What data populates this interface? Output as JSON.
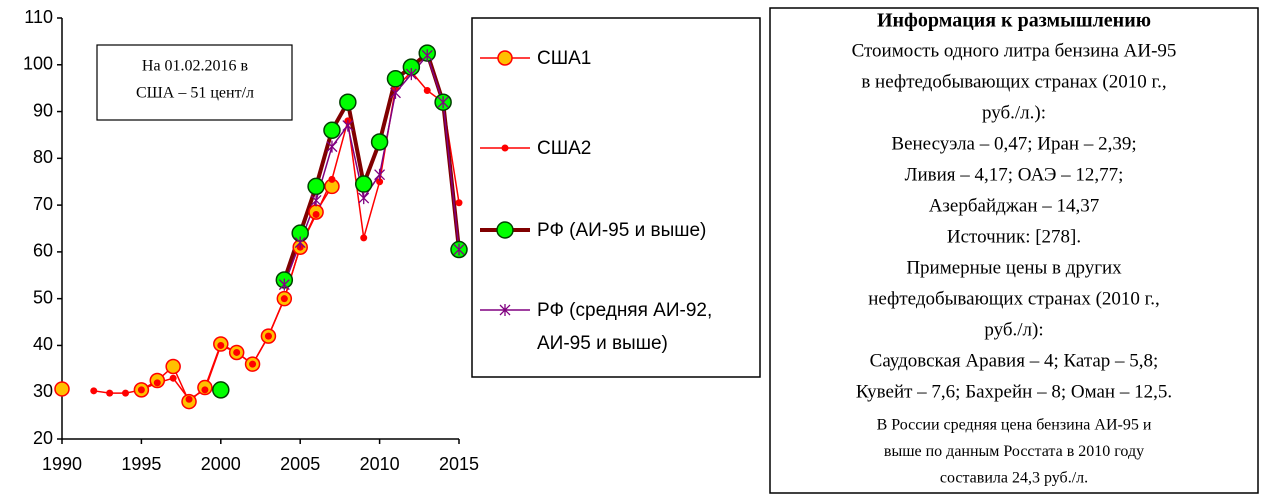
{
  "chart_data": {
    "type": "line",
    "x": [
      1990,
      1991,
      1992,
      1993,
      1994,
      1995,
      1996,
      1997,
      1998,
      1999,
      2000,
      2001,
      2002,
      2003,
      2004,
      2005,
      2006,
      2007,
      2008,
      2009,
      2010,
      2011,
      2012,
      2013,
      2014,
      2015
    ],
    "xlim": [
      1990,
      2015
    ],
    "xticks": [
      1990,
      1995,
      2000,
      2005,
      2010,
      2015
    ],
    "ylim": [
      20,
      110
    ],
    "yticks": [
      20,
      30,
      40,
      50,
      60,
      70,
      80,
      90,
      100,
      110
    ],
    "grid": false,
    "legend": "right",
    "series": [
      {
        "name": "США1",
        "color": "#ff0000",
        "marker": "circle",
        "marker_color": "#ffc000",
        "values": [
          30.7,
          null,
          null,
          null,
          null,
          30.5,
          32.5,
          35.5,
          28,
          31,
          40.3,
          38.5,
          36,
          42,
          50,
          61,
          68.5,
          74,
          null,
          null,
          null,
          null,
          null,
          null,
          null,
          null
        ]
      },
      {
        "name": "США2",
        "color": "#ff0000",
        "marker": "dot",
        "marker_color": "#ff0000",
        "values": [
          null,
          null,
          30.3,
          29.8,
          29.8,
          30.5,
          32,
          33,
          28.5,
          30.5,
          40,
          38.5,
          36,
          42,
          50,
          61,
          68,
          75.5,
          88,
          63,
          75,
          95,
          98.5,
          94.5,
          92,
          70.5
        ]
      },
      {
        "name": "РФ (АИ-95 и выше)",
        "color": "#800000",
        "marker": "circle",
        "marker_color": "#00ff00",
        "values": [
          null,
          null,
          null,
          null,
          null,
          null,
          null,
          null,
          null,
          null,
          30.5,
          null,
          null,
          null,
          54,
          64,
          74,
          86,
          92,
          74.5,
          83.5,
          97,
          99.5,
          102.5,
          92,
          60.5
        ]
      },
      {
        "name": "РФ (средняя АИ-92, АИ-95 и выше)",
        "color": "#800080",
        "marker": "star",
        "marker_color": "#800080",
        "values": [
          null,
          null,
          null,
          null,
          null,
          null,
          null,
          null,
          null,
          null,
          null,
          null,
          null,
          null,
          53,
          62,
          71,
          82.5,
          87,
          71.5,
          76.5,
          94,
          98,
          102,
          92,
          60.5
        ]
      }
    ],
    "annotation": [
      "На 01.02.2016 в",
      "США – 51 цент/л"
    ]
  },
  "info": {
    "title": "Информация к размышлению",
    "lines": [
      "Стоимость одного литра бензина АИ-95",
      "в нефтедобывающих странах (2010 г.,",
      "руб./л.):",
      "Венесуэла – 0,47; Иран – 2,39;",
      "Ливия – 4,17; ОАЭ – 12,77;",
      "Азербайджан – 14,37",
      "Источник: [278].",
      "Примерные цены в других",
      "нефтедобывающих странах  (2010 г.,",
      "руб./л):",
      "Саудовская Аравия – 4; Катар – 5,8;",
      "Кувейт – 7,6; Бахрейн – 8; Оман – 12,5."
    ],
    "note_lines": [
      "В России средняя цена бензина АИ-95 и",
      "выше по данным Росстата в 2010 году",
      "составила 24,3 руб./л."
    ]
  }
}
